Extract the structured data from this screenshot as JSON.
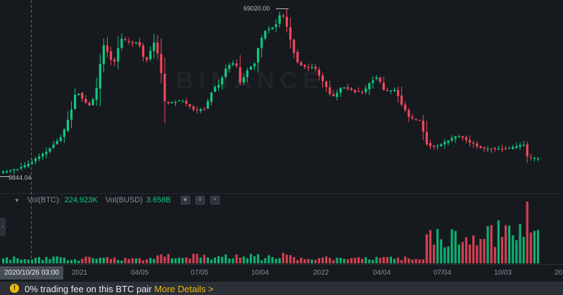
{
  "price_markers": {
    "high": "69020.00",
    "low": "9844.04"
  },
  "watermark": "BINANCE",
  "volume_legend": {
    "vol_btc_label": "Vol(BTC):",
    "vol_btc_value": "224.923K",
    "vol_busd_label": "Vol(BUSD)",
    "vol_busd_value": "3.658B",
    "collapse_symbol": "▼",
    "icons": [
      "eye-icon",
      "settings-icon",
      "close-icon"
    ]
  },
  "x_axis": {
    "cursor_label": "2020/10/26 03:00",
    "ticks": [
      "2021",
      "04/05",
      "07/05",
      "10/04",
      "2022",
      "04/04",
      "07/04",
      "10/03",
      "20"
    ]
  },
  "banner": {
    "text": "0% trading fee on this BTC pair ",
    "link": "More Details >"
  },
  "colors": {
    "background": "#161a1e",
    "up": "#0ecb81",
    "down": "#f6465d",
    "accent": "#f0b90b",
    "grid": "#2b3139"
  },
  "chart_data": {
    "type": "candlestick",
    "series": [
      {
        "name": "BTC price",
        "y_anchor_values": [
          9844.04,
          69020.0
        ]
      },
      {
        "name": "Volume"
      }
    ]
  }
}
